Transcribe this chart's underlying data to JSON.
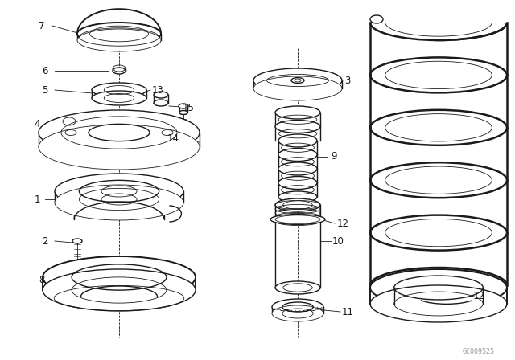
{
  "background_color": "#ffffff",
  "line_color": "#1a1a1a",
  "watermark": "GC009525",
  "fig_w": 6.4,
  "fig_h": 4.48,
  "dpi": 100
}
